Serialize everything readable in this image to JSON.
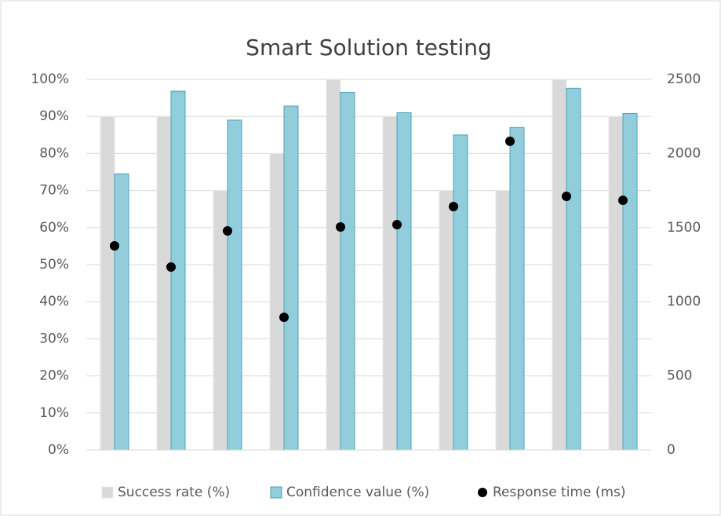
{
  "chart_data": {
    "type": "bar",
    "title": "Smart Solution testing",
    "categories": [
      null,
      null,
      null,
      null,
      null,
      null,
      null,
      null,
      null,
      null
    ],
    "series": [
      {
        "name": "Success rate (%)",
        "type": "bar",
        "color": "#d9d9d9",
        "values": [
          90,
          90,
          70,
          80,
          100,
          90,
          70,
          70,
          100,
          90
        ]
      },
      {
        "name": "Confidence value (%)",
        "type": "bar",
        "color": "#92cddc",
        "values": [
          74.5,
          96.8,
          89,
          92.8,
          96.5,
          91,
          85,
          87,
          97.6,
          90.8
        ]
      },
      {
        "name": "Response time (ms)",
        "type": "scatter",
        "color": "#000000",
        "axis": "y2",
        "values": [
          1377,
          1234,
          1478,
          895,
          1504,
          1520,
          1642,
          2082,
          1711,
          1684
        ]
      }
    ],
    "ylim": [
      0,
      100
    ],
    "yticks": [
      {
        "value": 0,
        "label": "0%"
      },
      {
        "value": 10,
        "label": "10%"
      },
      {
        "value": 20,
        "label": "20%"
      },
      {
        "value": 30,
        "label": "30%"
      },
      {
        "value": 40,
        "label": "40%"
      },
      {
        "value": 50,
        "label": "50%"
      },
      {
        "value": 60,
        "label": "60%"
      },
      {
        "value": 70,
        "label": "70%"
      },
      {
        "value": 80,
        "label": "80%"
      },
      {
        "value": 90,
        "label": "90%"
      },
      {
        "value": 100,
        "label": "100%"
      }
    ],
    "y2lim": [
      0,
      2500
    ],
    "y2ticks": [
      0,
      500,
      1000,
      1500,
      2000,
      2500
    ],
    "grid": true,
    "legend": "bottom"
  }
}
